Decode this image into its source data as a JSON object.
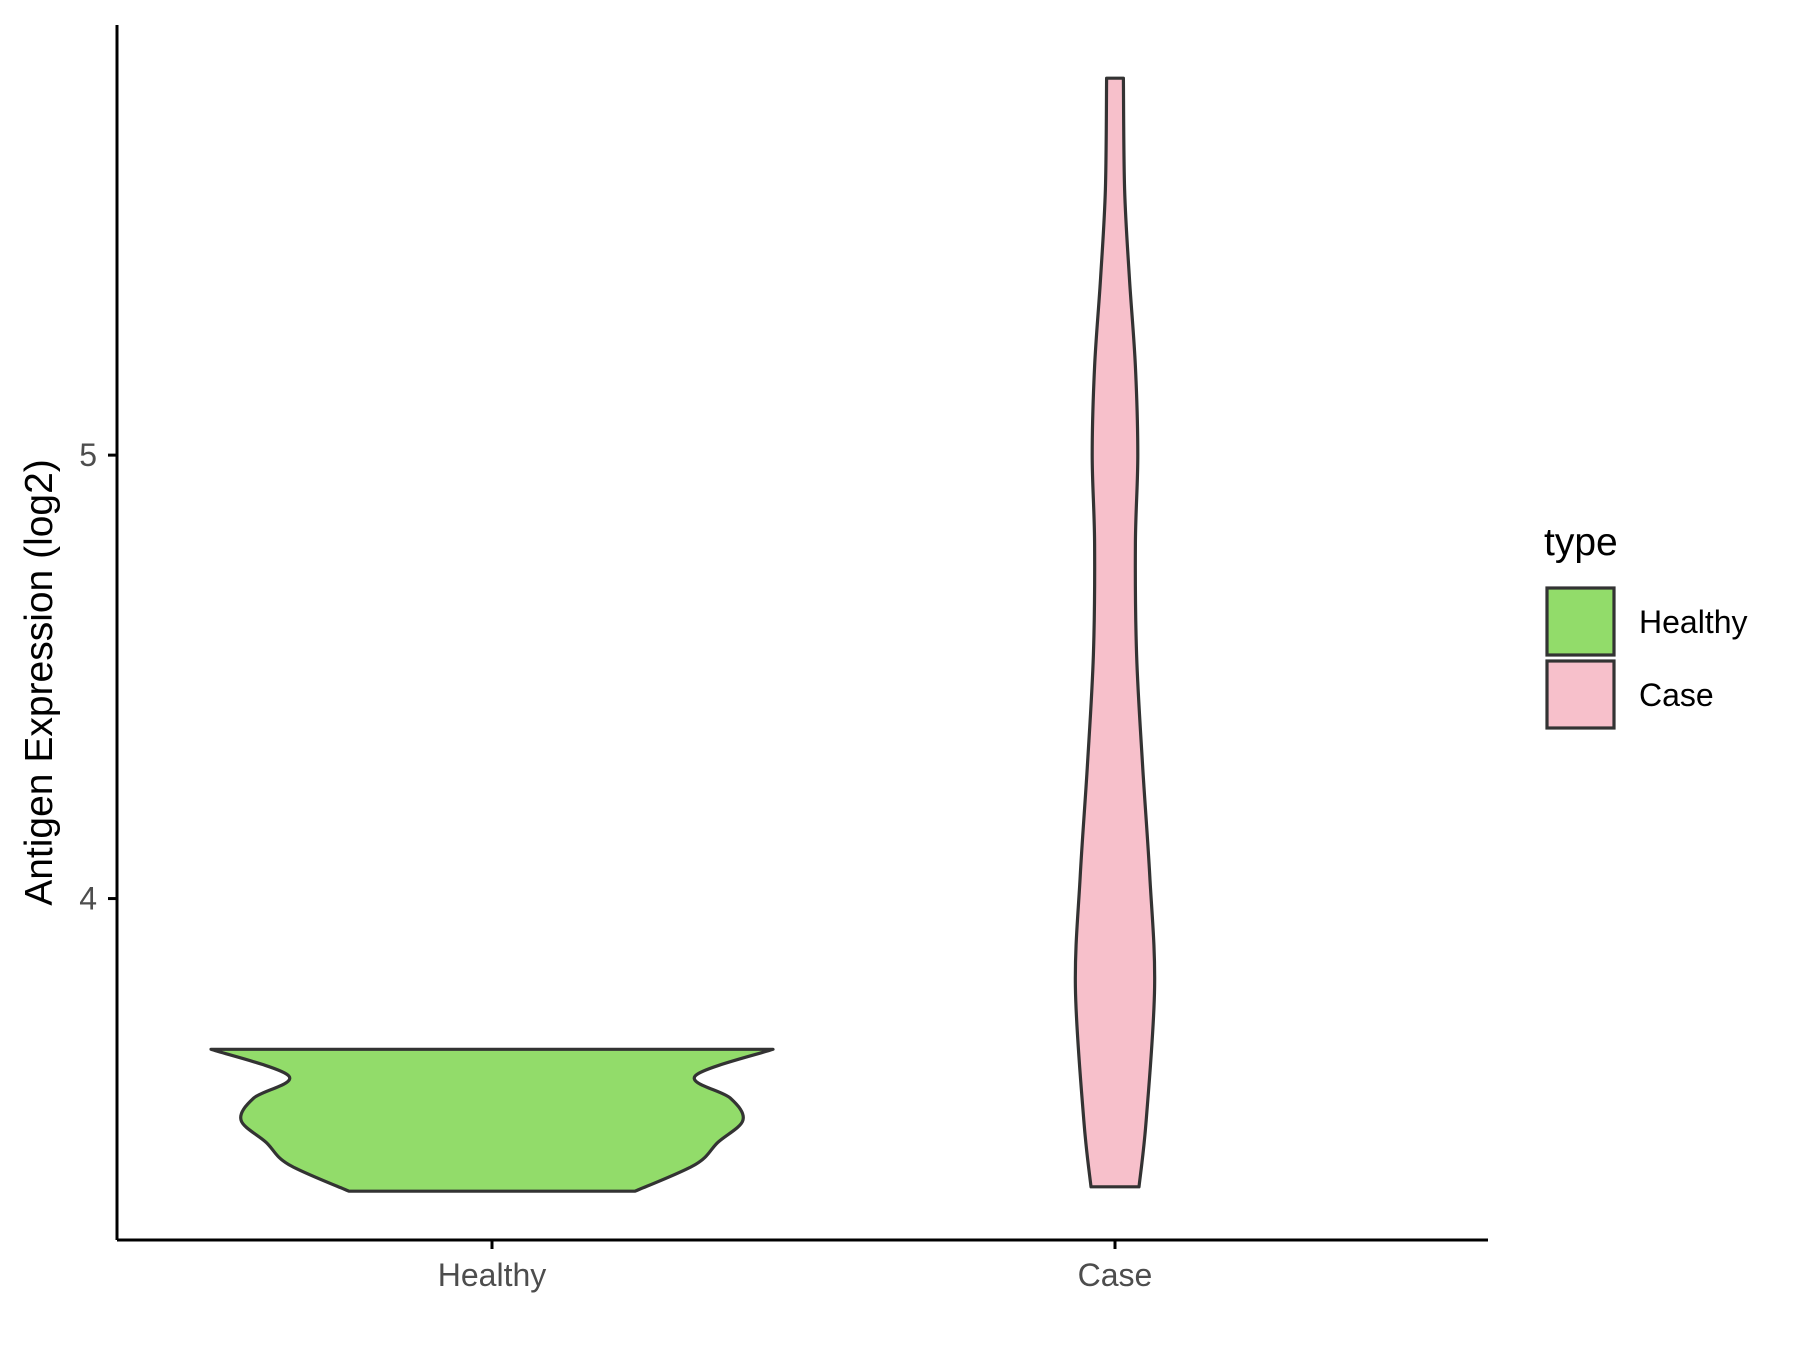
{
  "chart_data": {
    "type": "violin",
    "title": "",
    "xlabel": "",
    "ylabel": "Antigen Expression (log2)",
    "categories": [
      "Healthy",
      "Case"
    ],
    "ylim": [
      3.23,
      5.97
    ],
    "y_ticks": [
      4,
      5
    ],
    "y_tick_labels": [
      "4",
      "5"
    ],
    "grid": false,
    "series": [
      {
        "name": "Healthy",
        "color": "#92dc6a",
        "outline": "#333333",
        "min": 3.34,
        "max": 3.66,
        "density_profile": [
          {
            "y": 3.34,
            "w": 0.57
          },
          {
            "y": 3.4,
            "w": 0.81
          },
          {
            "y": 3.45,
            "w": 0.9
          },
          {
            "y": 3.5,
            "w": 1.0
          },
          {
            "y": 3.55,
            "w": 0.95
          },
          {
            "y": 3.6,
            "w": 0.81
          },
          {
            "y": 3.66,
            "w": 1.12
          }
        ]
      },
      {
        "name": "Case",
        "color": "#f7c0cb",
        "outline": "#333333",
        "min": 3.35,
        "max": 5.85,
        "density_profile": [
          {
            "y": 3.35,
            "w": 1.0
          },
          {
            "y": 3.5,
            "w": 1.3
          },
          {
            "y": 3.8,
            "w": 1.65
          },
          {
            "y": 4.05,
            "w": 1.45
          },
          {
            "y": 4.3,
            "w": 1.15
          },
          {
            "y": 4.55,
            "w": 0.9
          },
          {
            "y": 4.8,
            "w": 0.85
          },
          {
            "y": 5.0,
            "w": 0.95
          },
          {
            "y": 5.2,
            "w": 0.85
          },
          {
            "y": 5.4,
            "w": 0.6
          },
          {
            "y": 5.6,
            "w": 0.4
          },
          {
            "y": 5.85,
            "w": 0.35
          }
        ]
      }
    ],
    "legend": {
      "title": "type",
      "position": "right",
      "entries": [
        {
          "label": "Healthy",
          "color": "#92dc6a"
        },
        {
          "label": "Case",
          "color": "#f7c0cb"
        }
      ]
    }
  }
}
